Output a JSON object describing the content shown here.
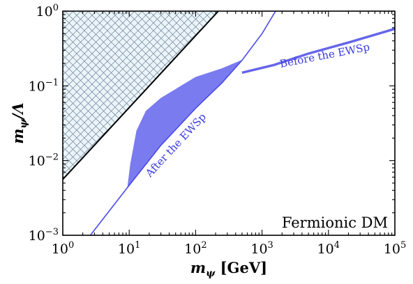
{
  "chart_data": {
    "type": "line",
    "title": "",
    "xlabel": "m_ψ [GeV]",
    "ylabel": "m_ψ/Λ",
    "xscale": "log",
    "yscale": "log",
    "xlim": [
      1,
      100000
    ],
    "ylim": [
      0.001,
      1
    ],
    "grid": false,
    "x_tick_labels": [
      {
        "value": 1,
        "base": "10",
        "exp": "0"
      },
      {
        "value": 10,
        "base": "10",
        "exp": "1"
      },
      {
        "value": 100,
        "base": "10",
        "exp": "2"
      },
      {
        "value": 1000,
        "base": "10",
        "exp": "3"
      },
      {
        "value": 10000,
        "base": "10",
        "exp": "4"
      },
      {
        "value": 100000,
        "base": "10",
        "exp": "5"
      }
    ],
    "y_tick_labels": [
      {
        "value": 0.001,
        "base": "10",
        "exp": "−3"
      },
      {
        "value": 0.01,
        "base": "10",
        "exp": "−2"
      },
      {
        "value": 0.1,
        "base": "10",
        "exp": "−1"
      },
      {
        "value": 1,
        "base": "10",
        "exp": "0"
      }
    ],
    "colors": {
      "series": "#4a4ae6",
      "fill": "#7b7bf0",
      "hatch_bg": "#eaf4f9",
      "hatch_line": "#6e8296",
      "boundary": "#000000"
    },
    "hatched_region": {
      "boundary": [
        [
          1,
          0.0056
        ],
        [
          220,
          1
        ]
      ]
    },
    "series": [
      {
        "key": "after",
        "points": [
          [
            2.6,
            0.001
          ],
          [
            9.5,
            0.0044
          ],
          [
            30,
            0.016
          ],
          [
            100,
            0.05
          ],
          [
            250,
            0.11
          ],
          [
            500,
            0.22
          ],
          [
            1000,
            0.5
          ],
          [
            1600,
            1
          ]
        ]
      },
      {
        "key": "before",
        "points": [
          [
            500,
            0.15
          ],
          [
            1500,
            0.19
          ],
          [
            5000,
            0.27
          ],
          [
            20000,
            0.38
          ],
          [
            100000,
            0.58
          ]
        ]
      }
    ],
    "shaded_band": {
      "upper": [
        [
          9.5,
          0.0044
        ],
        [
          10.5,
          0.009
        ],
        [
          13,
          0.025
        ],
        [
          18,
          0.046
        ],
        [
          30,
          0.068
        ],
        [
          100,
          0.13
        ],
        [
          250,
          0.17
        ],
        [
          500,
          0.22
        ]
      ],
      "lower": [
        [
          500,
          0.22
        ],
        [
          250,
          0.11
        ],
        [
          100,
          0.05
        ],
        [
          30,
          0.016
        ],
        [
          9.5,
          0.0044
        ]
      ]
    },
    "annotations": [
      {
        "key": "after",
        "text": "After the EWSp",
        "x": 55,
        "y": 0.015,
        "angle_deg": -47
      },
      {
        "key": "before",
        "text": "Before the EWSp",
        "x": 9000,
        "y": 0.23,
        "angle_deg": -11
      }
    ],
    "panel_label": "Fermionic DM"
  }
}
